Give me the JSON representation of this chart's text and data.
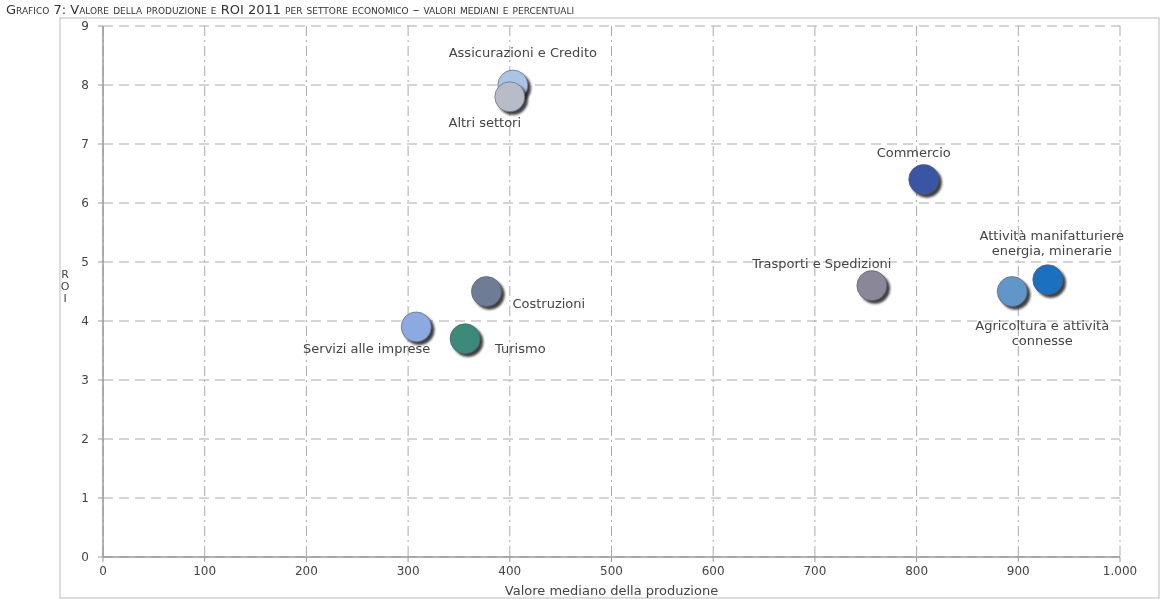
{
  "chart_data": {
    "type": "scatter",
    "title": "Grafico 7: Valore della produzione e ROI 2011 per settore economico – valori mediani e percentuali",
    "xlabel": "Valore mediano della produzione",
    "ylabel": "ROI",
    "xlim": [
      0,
      1000
    ],
    "xticks": [
      0,
      100,
      200,
      300,
      400,
      500,
      600,
      700,
      800,
      900,
      {
        "value": 1000,
        "label": "1.000"
      }
    ],
    "ylim": [
      0,
      9
    ],
    "yticks": [
      0,
      1,
      2,
      3,
      4,
      5,
      6,
      7,
      8,
      9
    ],
    "grid": true,
    "marker": "circle",
    "series": [
      {
        "name": "Assicurazioni e Credito",
        "color": "#a9c4e4",
        "x": [
          403
        ],
        "values": [
          8.0
        ]
      },
      {
        "name": "Altri settori",
        "color": "#b8bcc8",
        "x": [
          400
        ],
        "values": [
          7.8
        ]
      },
      {
        "name": "Commercio",
        "color": "#3a55a5",
        "x": [
          807
        ],
        "values": [
          6.4
        ]
      },
      {
        "name": "Trasporti e Spedizioni",
        "color": "#8a8799",
        "x": [
          756
        ],
        "values": [
          4.6
        ]
      },
      {
        "name": "Attività manifatturiere energia, minerarie",
        "color": "#1f6fc0",
        "x": [
          929
        ],
        "values": [
          4.7
        ]
      },
      {
        "name": "Agricoltura e attività connesse",
        "color": "#6196c8",
        "x": [
          894
        ],
        "values": [
          4.5
        ]
      },
      {
        "name": "Costruzioni",
        "color": "#6e7b95",
        "x": [
          377
        ],
        "values": [
          4.5
        ]
      },
      {
        "name": "Servizi alle imprese",
        "color": "#8aaae0",
        "x": [
          308
        ],
        "values": [
          3.9
        ]
      },
      {
        "name": "Turismo",
        "color": "#3a8a7a",
        "x": [
          356
        ],
        "values": [
          3.7
        ]
      }
    ]
  }
}
